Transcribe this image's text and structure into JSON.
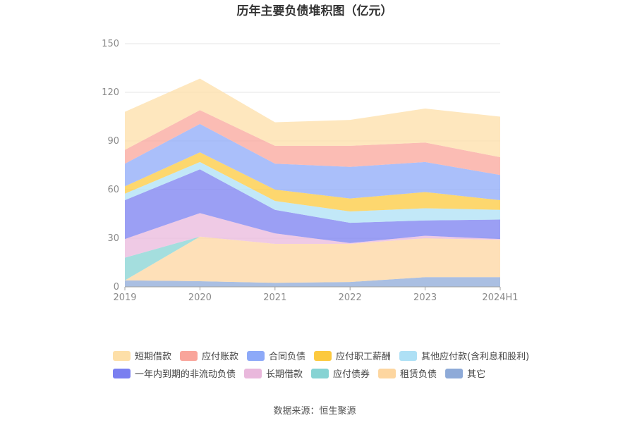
{
  "chart_data": {
    "type": "area",
    "stacked": true,
    "title": "历年主要负债堆积图（亿元）",
    "xlabel": "",
    "ylabel": "",
    "x": [
      "2019",
      "2020",
      "2021",
      "2022",
      "2023",
      "2024H1"
    ],
    "ylim": [
      0,
      150
    ],
    "yticks": [
      0,
      30,
      60,
      90,
      120,
      150
    ],
    "grid": true,
    "legend_position": "bottom",
    "series": [
      {
        "name": "其它",
        "color": "#8eaad8",
        "values": [
          4.0,
          3.5,
          2.5,
          3.0,
          6.0,
          6.0
        ]
      },
      {
        "name": "租赁负债",
        "color": "#fdd6a0",
        "values": [
          0.0,
          27.5,
          24.0,
          23.5,
          24.0,
          23.0
        ]
      },
      {
        "name": "应付债券",
        "color": "#86d3d3",
        "values": [
          14.0,
          0.0,
          0.0,
          0.0,
          0.0,
          0.0
        ]
      },
      {
        "name": "长期借款",
        "color": "#e9b8dc",
        "values": [
          11.5,
          14.5,
          6.5,
          0.5,
          1.5,
          0.5
        ]
      },
      {
        "name": "一年内到期的非流动负债",
        "color": "#7a7ff0",
        "values": [
          24.0,
          27.0,
          14.5,
          12.5,
          9.5,
          12.0
        ]
      },
      {
        "name": "其他应付款(含利息和股利)",
        "color": "#aee0f5",
        "values": [
          4.0,
          4.5,
          5.5,
          7.0,
          7.5,
          6.0
        ]
      },
      {
        "name": "应付职工薪酬",
        "color": "#fcc93e",
        "values": [
          4.5,
          6.0,
          7.0,
          8.0,
          10.0,
          6.0
        ]
      },
      {
        "name": "合同负债",
        "color": "#8da9f8",
        "values": [
          14.0,
          17.5,
          16.0,
          19.5,
          18.5,
          15.5
        ]
      },
      {
        "name": "应付账款",
        "color": "#f9a59b",
        "values": [
          8.5,
          8.5,
          11.0,
          13.0,
          12.0,
          11.0
        ]
      },
      {
        "name": "短期借款",
        "color": "#fddfa8",
        "values": [
          23.5,
          19.5,
          14.5,
          16.0,
          21.0,
          25.0
        ]
      }
    ],
    "legend_order": [
      "短期借款",
      "应付账款",
      "合同负债",
      "应付职工薪酬",
      "其他应付款(含利息和股利)",
      "一年内到期的非流动负债",
      "长期借款",
      "应付债券",
      "租赁负债",
      "其它"
    ]
  },
  "source_text": "数据来源：恒生聚源"
}
